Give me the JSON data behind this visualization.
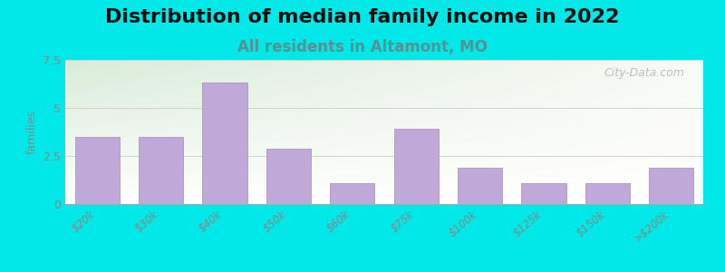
{
  "title": "Distribution of median family income in 2022",
  "subtitle": "All residents in Altamont, MO",
  "categories": [
    "$20k",
    "$30k",
    "$40k",
    "$50k",
    "$60k",
    "$75k",
    "$100k",
    "$125k",
    "$150k",
    ">$200k"
  ],
  "values": [
    3.5,
    3.5,
    6.3,
    2.9,
    1.1,
    3.9,
    1.9,
    1.1,
    1.1,
    1.9
  ],
  "bar_color": "#c0a8d8",
  "bar_edge_color": "#a888c0",
  "background_outer": "#00e8e8",
  "plot_bg_top_left": "#d8ecd8",
  "plot_bg_top_right": "#f0f4ec",
  "plot_bg_bottom": "#ffffff",
  "ylim": [
    0,
    7.5
  ],
  "yticks": [
    0,
    2.5,
    5,
    7.5
  ],
  "ylabel": "families",
  "title_fontsize": 16,
  "subtitle_fontsize": 12,
  "subtitle_color": "#5a9090",
  "tick_label_color": "#888888",
  "watermark_text": "City-Data.com",
  "watermark_color": "#b0b8b0"
}
